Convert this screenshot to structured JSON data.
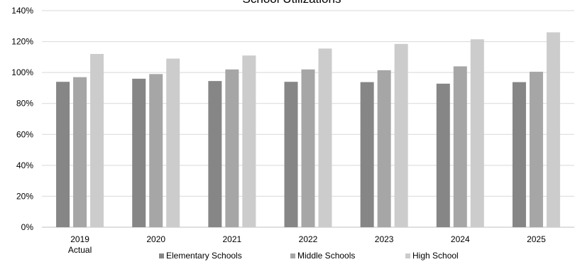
{
  "chart_data": {
    "type": "bar",
    "title": "School Utilizations",
    "categories": [
      {
        "line1": "2019",
        "line2": "Actual"
      },
      {
        "line1": "2020",
        "line2": ""
      },
      {
        "line1": "2021",
        "line2": ""
      },
      {
        "line1": "2022",
        "line2": ""
      },
      {
        "line1": "2023",
        "line2": ""
      },
      {
        "line1": "2024",
        "line2": ""
      },
      {
        "line1": "2025",
        "line2": ""
      }
    ],
    "series": [
      {
        "name": "Elementary Schools",
        "color": "#868686",
        "values": [
          94,
          96,
          94.5,
          94,
          93.8,
          92.8,
          93.8
        ]
      },
      {
        "name": "Middle Schools",
        "color": "#a6a6a6",
        "values": [
          97,
          99,
          102,
          102,
          101.5,
          104,
          100.5
        ]
      },
      {
        "name": "High School",
        "color": "#cccccc",
        "values": [
          112,
          109,
          111,
          115.5,
          118.5,
          121.5,
          126
        ]
      }
    ],
    "ylim": [
      0,
      140
    ],
    "yticks": [
      "0%",
      "20%",
      "40%",
      "60%",
      "80%",
      "100%",
      "120%",
      "140%"
    ],
    "ytick_values": [
      0,
      20,
      40,
      60,
      80,
      100,
      120,
      140
    ],
    "grid": true,
    "legend_position": "bottom",
    "xlabel": "",
    "ylabel": ""
  }
}
